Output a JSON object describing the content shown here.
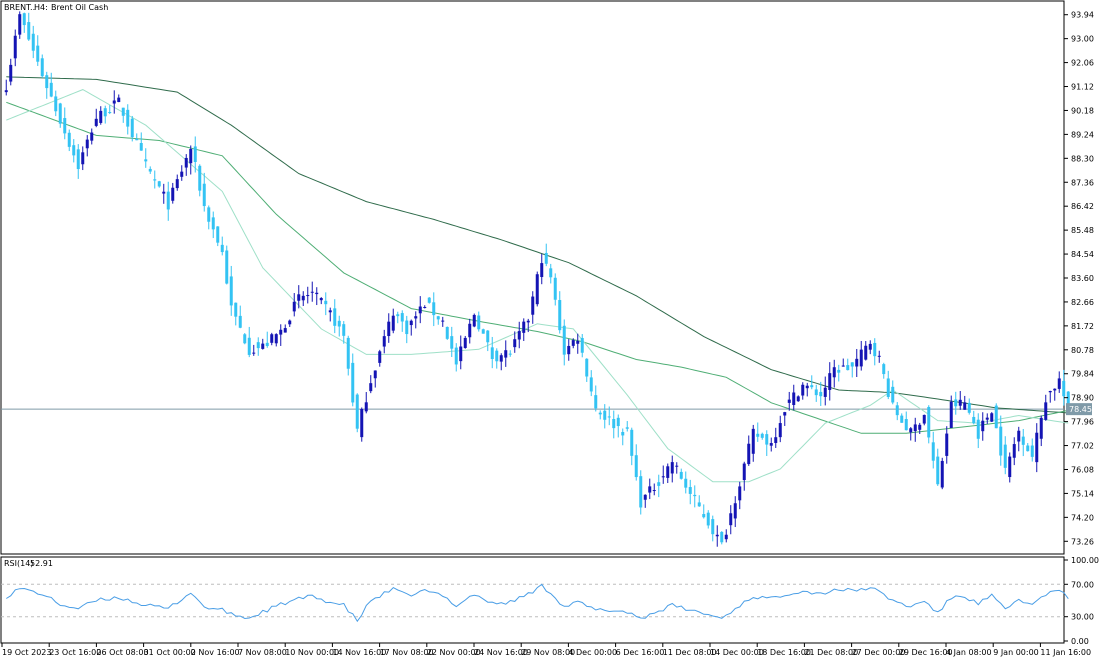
{
  "header": {
    "symbol": "BRENT..",
    "timeframe": "H4:",
    "instrument": "Brent Oil Cash"
  },
  "indicator": {
    "name": "RSI(14)",
    "value": "52.91",
    "levels": [
      70,
      30
    ],
    "scale_labels": [
      "100.00",
      "70.00",
      "30.00",
      "0.00"
    ]
  },
  "colors": {
    "bull": "#1414b4",
    "bear": "#33c3f3",
    "ma_fast": "#9fe0c8",
    "ma_mid": "#4fae75",
    "ma_slow": "#2f6b4b",
    "rsi": "#4a9ee6",
    "grid_level": "#bdbdbd",
    "current_line": "#7f9aa8",
    "price_tag_bg": "#7f9aa8",
    "price_tag_text": "#ffffff",
    "frame": "#000000"
  },
  "chart_data": {
    "type": "candlestick",
    "price_axis": {
      "range": [
        72.8,
        94.4
      ],
      "ticks": [
        "93.94",
        "93.00",
        "92.06",
        "91.12",
        "90.18",
        "89.24",
        "88.30",
        "87.36",
        "86.42",
        "85.48",
        "84.54",
        "83.60",
        "82.66",
        "81.72",
        "80.78",
        "79.84",
        "78.90",
        "77.96",
        "77.02",
        "76.08",
        "75.14",
        "74.20",
        "73.26"
      ]
    },
    "current_price": {
      "value": 78.45,
      "label": "78.45"
    },
    "time_axis": {
      "labels": [
        "19 Oct 2023",
        "23 Oct 16:00",
        "26 Oct 08:00",
        "31 Oct 00:00",
        "2 Nov 16:00",
        "7 Nov 08:00",
        "10 Nov 00:00",
        "14 Nov 16:00",
        "17 Nov 08:00",
        "22 Nov 00:00",
        "24 Nov 16:00",
        "29 Nov 08:00",
        "4 Dec 00:00",
        "6 Dec 16:00",
        "11 Dec 08:00",
        "14 Dec 00:00",
        "18 Dec 16:00",
        "21 Dec 08:00",
        "27 Dec 00:00",
        "29 Dec 16:00",
        "4 Jan 08:00",
        "9 Jan 00:00",
        "11 Jan 16:00"
      ]
    },
    "price_anchors": [
      [
        0,
        91.2
      ],
      [
        3,
        93.9
      ],
      [
        8,
        91.6
      ],
      [
        12,
        89.8
      ],
      [
        16,
        88.0
      ],
      [
        20,
        89.9
      ],
      [
        25,
        90.5
      ],
      [
        31,
        88.0
      ],
      [
        36,
        86.5
      ],
      [
        41,
        88.7
      ],
      [
        44,
        86.4
      ],
      [
        48,
        84.6
      ],
      [
        50,
        82.4
      ],
      [
        54,
        80.8
      ],
      [
        57,
        80.9
      ],
      [
        61,
        81.5
      ],
      [
        65,
        82.8
      ],
      [
        68,
        83.0
      ],
      [
        72,
        82.2
      ],
      [
        75,
        81.3
      ],
      [
        78,
        77.6
      ],
      [
        81,
        79.6
      ],
      [
        86,
        82.3
      ],
      [
        89,
        81.6
      ],
      [
        93,
        82.6
      ],
      [
        97,
        81.9
      ],
      [
        100,
        80.2
      ],
      [
        104,
        82.2
      ],
      [
        108,
        80.5
      ],
      [
        112,
        80.7
      ],
      [
        116,
        82.0
      ],
      [
        119,
        84.4
      ],
      [
        121,
        83.6
      ],
      [
        124,
        80.7
      ],
      [
        127,
        81.3
      ],
      [
        131,
        78.5
      ],
      [
        134,
        78.0
      ],
      [
        138,
        77.5
      ],
      [
        141,
        74.8
      ],
      [
        144,
        75.4
      ],
      [
        148,
        76.4
      ],
      [
        152,
        75.1
      ],
      [
        155,
        74.3
      ],
      [
        159,
        73.1
      ],
      [
        163,
        75.6
      ],
      [
        166,
        77.5
      ],
      [
        170,
        77.1
      ],
      [
        173,
        78.5
      ],
      [
        177,
        79.4
      ],
      [
        181,
        79.0
      ],
      [
        184,
        80.0
      ],
      [
        188,
        80.1
      ],
      [
        192,
        81.1
      ],
      [
        194,
        80.4
      ],
      [
        197,
        78.5
      ],
      [
        201,
        77.5
      ],
      [
        204,
        78.3
      ],
      [
        207,
        75.4
      ],
      [
        210,
        78.6
      ],
      [
        213,
        78.7
      ],
      [
        216,
        77.5
      ],
      [
        219,
        78.5
      ],
      [
        222,
        76.0
      ],
      [
        225,
        77.6
      ],
      [
        228,
        76.6
      ],
      [
        231,
        78.9
      ],
      [
        234,
        79.6
      ],
      [
        236,
        78.3
      ]
    ],
    "ma_fast": {
      "period": "short",
      "anchors": [
        [
          0,
          89.8
        ],
        [
          17,
          91.0
        ],
        [
          31,
          89.6
        ],
        [
          48,
          87.0
        ],
        [
          57,
          84.0
        ],
        [
          70,
          81.6
        ],
        [
          80,
          80.6
        ],
        [
          90,
          80.6
        ],
        [
          105,
          80.8
        ],
        [
          118,
          81.8
        ],
        [
          126,
          81.6
        ],
        [
          138,
          79.0
        ],
        [
          147,
          76.9
        ],
        [
          157,
          75.6
        ],
        [
          165,
          75.6
        ],
        [
          172,
          76.1
        ],
        [
          182,
          77.9
        ],
        [
          192,
          78.6
        ],
        [
          197,
          79.2
        ],
        [
          207,
          78.0
        ],
        [
          216,
          77.9
        ],
        [
          225,
          78.2
        ],
        [
          236,
          77.9
        ]
      ]
    },
    "ma_mid": {
      "period": "medium",
      "anchors": [
        [
          0,
          90.5
        ],
        [
          20,
          89.2
        ],
        [
          34,
          89.0
        ],
        [
          48,
          88.4
        ],
        [
          60,
          86.1
        ],
        [
          75,
          83.8
        ],
        [
          90,
          82.4
        ],
        [
          105,
          81.9
        ],
        [
          118,
          81.5
        ],
        [
          128,
          81.1
        ],
        [
          140,
          80.4
        ],
        [
          150,
          80.1
        ],
        [
          160,
          79.7
        ],
        [
          170,
          78.7
        ],
        [
          180,
          78.1
        ],
        [
          190,
          77.5
        ],
        [
          200,
          77.5
        ],
        [
          215,
          77.8
        ],
        [
          225,
          78.0
        ],
        [
          236,
          78.4
        ]
      ]
    },
    "ma_slow": {
      "period": "long",
      "anchors": [
        [
          0,
          91.5
        ],
        [
          20,
          91.4
        ],
        [
          38,
          90.9
        ],
        [
          50,
          89.6
        ],
        [
          65,
          87.7
        ],
        [
          80,
          86.6
        ],
        [
          95,
          85.9
        ],
        [
          110,
          85.1
        ],
        [
          125,
          84.2
        ],
        [
          140,
          82.9
        ],
        [
          155,
          81.3
        ],
        [
          170,
          80.0
        ],
        [
          185,
          79.2
        ],
        [
          197,
          79.1
        ],
        [
          205,
          78.9
        ],
        [
          220,
          78.5
        ],
        [
          236,
          78.3
        ]
      ]
    },
    "rsi": {
      "range": [
        0,
        100
      ],
      "anchors": [
        [
          0,
          55
        ],
        [
          3,
          65
        ],
        [
          8,
          58
        ],
        [
          12,
          45
        ],
        [
          16,
          40
        ],
        [
          20,
          50
        ],
        [
          25,
          54
        ],
        [
          31,
          44
        ],
        [
          36,
          40
        ],
        [
          41,
          60
        ],
        [
          44,
          42
        ],
        [
          48,
          38
        ],
        [
          50,
          33
        ],
        [
          54,
          28
        ],
        [
          57,
          36
        ],
        [
          61,
          45
        ],
        [
          65,
          52
        ],
        [
          68,
          55
        ],
        [
          72,
          48
        ],
        [
          75,
          44
        ],
        [
          78,
          25
        ],
        [
          81,
          50
        ],
        [
          86,
          64
        ],
        [
          89,
          56
        ],
        [
          93,
          62
        ],
        [
          97,
          56
        ],
        [
          100,
          44
        ],
        [
          104,
          58
        ],
        [
          108,
          46
        ],
        [
          112,
          48
        ],
        [
          116,
          58
        ],
        [
          119,
          68
        ],
        [
          121,
          60
        ],
        [
          124,
          42
        ],
        [
          127,
          48
        ],
        [
          131,
          38
        ],
        [
          134,
          38
        ],
        [
          138,
          36
        ],
        [
          141,
          28
        ],
        [
          144,
          35
        ],
        [
          148,
          44
        ],
        [
          152,
          38
        ],
        [
          155,
          34
        ],
        [
          159,
          28
        ],
        [
          163,
          44
        ],
        [
          166,
          55
        ],
        [
          170,
          52
        ],
        [
          173,
          58
        ],
        [
          177,
          62
        ],
        [
          181,
          58
        ],
        [
          184,
          64
        ],
        [
          188,
          62
        ],
        [
          192,
          66
        ],
        [
          194,
          60
        ],
        [
          197,
          50
        ],
        [
          201,
          42
        ],
        [
          204,
          50
        ],
        [
          207,
          34
        ],
        [
          210,
          54
        ],
        [
          213,
          55
        ],
        [
          216,
          46
        ],
        [
          219,
          56
        ],
        [
          222,
          38
        ],
        [
          225,
          52
        ],
        [
          228,
          44
        ],
        [
          231,
          58
        ],
        [
          234,
          62
        ],
        [
          236,
          53
        ]
      ]
    }
  }
}
